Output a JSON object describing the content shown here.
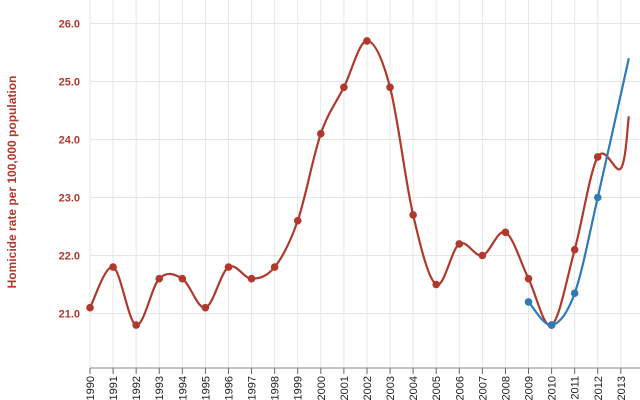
{
  "chart_data": {
    "type": "line",
    "ylabel": "Homicide rate per 100,000 population",
    "ylim": [
      20.0,
      26.0
    ],
    "yticks": [
      "21.0",
      "22.0",
      "23.0",
      "24.0",
      "25.0",
      "26.0"
    ],
    "categories": [
      "1990",
      "1991",
      "1992",
      "1993",
      "1994",
      "1995",
      "1996",
      "1997",
      "1998",
      "1999",
      "2000",
      "2001",
      "2002",
      "2003",
      "2004",
      "2005",
      "2006",
      "2007",
      "2008",
      "2009",
      "2010",
      "2011",
      "2012",
      "2013"
    ],
    "grid": true,
    "series": [
      {
        "color": "#b0392c",
        "x": [
          "1990",
          "1991",
          "1992",
          "1993",
          "1994",
          "1995",
          "1996",
          "1997",
          "1998",
          "1999",
          "2000",
          "2001",
          "2002",
          "2003",
          "2004",
          "2005",
          "2006",
          "2007",
          "2008",
          "2009",
          "2010",
          "2011",
          "2012",
          "2013"
        ],
        "values": [
          21.1,
          21.8,
          20.8,
          21.6,
          21.6,
          21.1,
          21.8,
          21.6,
          21.8,
          22.6,
          24.1,
          24.9,
          25.7,
          24.9,
          22.7,
          21.5,
          22.2,
          22.0,
          22.4,
          21.6,
          20.8,
          22.1,
          23.7,
          23.5
        ]
      },
      {
        "color": "#2e7bb5",
        "x": [
          "2009",
          "2010",
          "2011",
          "2012"
        ],
        "values": [
          21.2,
          20.8,
          21.35,
          23.0
        ]
      }
    ]
  }
}
